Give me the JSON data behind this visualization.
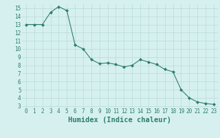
{
  "x": [
    0,
    1,
    2,
    3,
    4,
    5,
    6,
    7,
    8,
    9,
    10,
    11,
    12,
    13,
    14,
    15,
    16,
    17,
    18,
    19,
    20,
    21,
    22,
    23
  ],
  "y": [
    13.0,
    13.0,
    13.0,
    14.5,
    15.2,
    14.7,
    10.5,
    10.0,
    8.7,
    8.2,
    8.3,
    8.1,
    7.8,
    8.0,
    8.7,
    8.4,
    8.1,
    7.5,
    7.2,
    5.0,
    4.0,
    3.5,
    3.3,
    3.2
  ],
  "line_color": "#2e7d6e",
  "marker": "D",
  "marker_size": 2.0,
  "bg_color": "#d6f0f0",
  "grid_color": "#b8d8d8",
  "xlabel": "Humidex (Indice chaleur)",
  "xlim": [
    -0.5,
    23.5
  ],
  "ylim": [
    2.8,
    15.5
  ],
  "yticks": [
    3,
    4,
    5,
    6,
    7,
    8,
    9,
    10,
    11,
    12,
    13,
    14,
    15
  ],
  "xticks": [
    0,
    1,
    2,
    3,
    4,
    5,
    6,
    7,
    8,
    9,
    10,
    11,
    12,
    13,
    14,
    15,
    16,
    17,
    18,
    19,
    20,
    21,
    22,
    23
  ],
  "tick_fontsize": 5.5,
  "label_fontsize": 7.5
}
